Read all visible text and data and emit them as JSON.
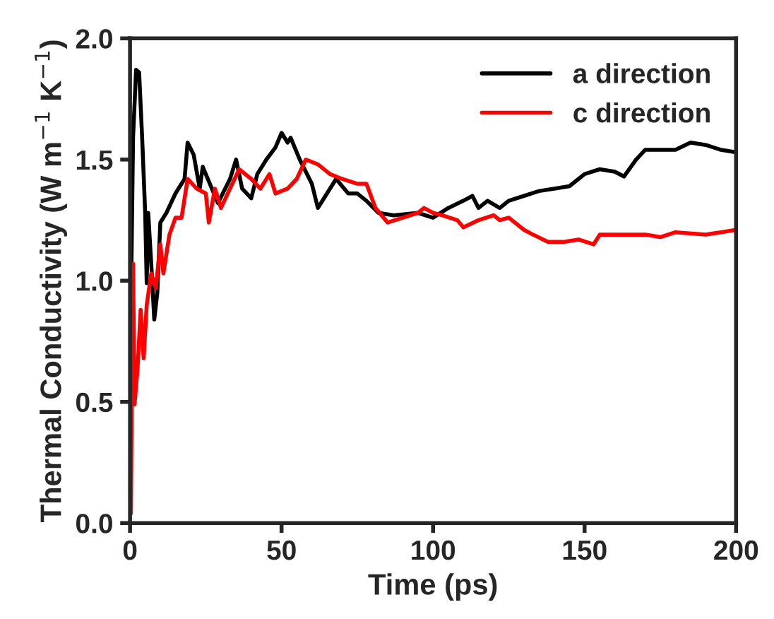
{
  "chart_data": {
    "type": "line",
    "xlabel": "Time (ps)",
    "ylabel": "Thermal Conductivity (W m$^{−1}$ K$^{−1}$)",
    "xlim": [
      0,
      200
    ],
    "xticks": [
      0,
      50,
      100,
      150,
      200
    ],
    "ylim": [
      0,
      2.0
    ],
    "yticks": [
      {
        "value": 0,
        "label": "0.0"
      },
      {
        "value": 0.5,
        "label": "0.5"
      },
      {
        "value": 1.0,
        "label": "1.0"
      },
      {
        "value": 1.5,
        "label": "1.5"
      },
      {
        "value": 2.0,
        "label": "2.0"
      }
    ],
    "grid": false,
    "legend": "top right",
    "line_style": "solid",
    "marker": "none",
    "series": [
      {
        "name": "a direction",
        "color": "#000000",
        "x": [
          0,
          1,
          2,
          3,
          4,
          5,
          5.5,
          6,
          7,
          8,
          9,
          10,
          12,
          15,
          18,
          19,
          21,
          23,
          24,
          27,
          29,
          33,
          35,
          37,
          40,
          42,
          45,
          48,
          50,
          52,
          53,
          56,
          60,
          62,
          65,
          68,
          72,
          75,
          78,
          82,
          87,
          95,
          100,
          105,
          110,
          113,
          115,
          118,
          122,
          125,
          130,
          135,
          140,
          145,
          148,
          150,
          155,
          160,
          163,
          167,
          170,
          175,
          180,
          185,
          190,
          195,
          200
        ],
        "values": [
          0.6,
          1.59,
          1.87,
          1.86,
          1.59,
          1.28,
          0.99,
          1.28,
          1.07,
          0.84,
          0.95,
          1.24,
          1.28,
          1.36,
          1.42,
          1.57,
          1.52,
          1.38,
          1.47,
          1.38,
          1.32,
          1.42,
          1.5,
          1.38,
          1.34,
          1.44,
          1.5,
          1.55,
          1.61,
          1.57,
          1.59,
          1.5,
          1.4,
          1.3,
          1.36,
          1.42,
          1.36,
          1.36,
          1.33,
          1.28,
          1.27,
          1.28,
          1.26,
          1.3,
          1.33,
          1.35,
          1.3,
          1.33,
          1.3,
          1.33,
          1.35,
          1.37,
          1.38,
          1.39,
          1.42,
          1.44,
          1.46,
          1.45,
          1.43,
          1.5,
          1.54,
          1.54,
          1.54,
          1.57,
          1.56,
          1.54,
          1.53
        ]
      },
      {
        "name": "c direction",
        "color": "#ff0000",
        "x": [
          0.3,
          0.6,
          1,
          1.5,
          2.5,
          3.5,
          4.5,
          5.5,
          7,
          8.5,
          10,
          11,
          13,
          15,
          17,
          19,
          22,
          25,
          26,
          28,
          30,
          33,
          36,
          40,
          43,
          46,
          48,
          52,
          55,
          58,
          62,
          66,
          70,
          75,
          78,
          81,
          85,
          90,
          95,
          97,
          100,
          103,
          108,
          110,
          115,
          120,
          122,
          125,
          130,
          133,
          138,
          143,
          148,
          153,
          155,
          160,
          170,
          175,
          180,
          190,
          200
        ],
        "values": [
          0.04,
          0.57,
          1.07,
          0.49,
          0.64,
          0.88,
          0.68,
          0.9,
          1.03,
          0.97,
          1.15,
          1.03,
          1.19,
          1.26,
          1.26,
          1.42,
          1.38,
          1.36,
          1.24,
          1.38,
          1.3,
          1.38,
          1.46,
          1.42,
          1.38,
          1.44,
          1.36,
          1.38,
          1.42,
          1.5,
          1.48,
          1.44,
          1.42,
          1.4,
          1.4,
          1.3,
          1.24,
          1.26,
          1.28,
          1.3,
          1.28,
          1.27,
          1.25,
          1.22,
          1.25,
          1.27,
          1.25,
          1.26,
          1.21,
          1.19,
          1.16,
          1.16,
          1.17,
          1.15,
          1.19,
          1.19,
          1.19,
          1.18,
          1.2,
          1.19,
          1.21
        ]
      }
    ]
  }
}
